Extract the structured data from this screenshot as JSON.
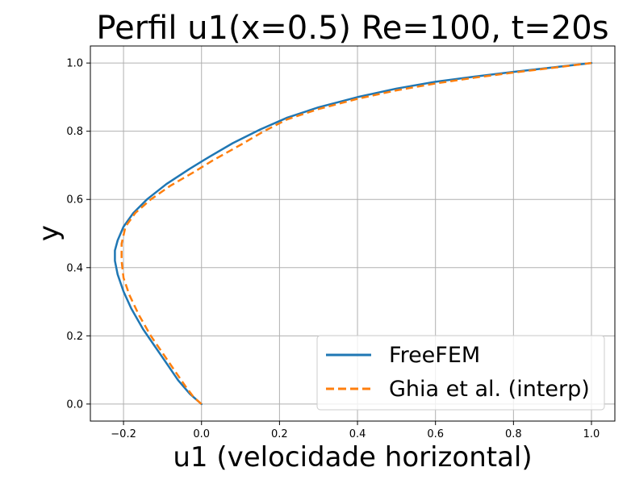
{
  "chart_data": {
    "type": "line",
    "title": "Perfil u1(x=0.5) Re=100, t=20s",
    "xlabel": "u1 (velocidade horizontal)",
    "ylabel": "y",
    "xlim": [
      -0.285,
      1.06
    ],
    "ylim": [
      -0.05,
      1.05
    ],
    "xticks": [
      -0.2,
      0.0,
      0.2,
      0.4,
      0.6,
      0.8,
      1.0
    ],
    "xtick_labels": [
      "−0.2",
      "0.0",
      "0.2",
      "0.4",
      "0.6",
      "0.8",
      "1.0"
    ],
    "yticks": [
      0.0,
      0.2,
      0.4,
      0.6,
      0.8,
      1.0
    ],
    "ytick_labels": [
      "0.0",
      "0.2",
      "0.4",
      "0.6",
      "0.8",
      "1.0"
    ],
    "grid": true,
    "legend_position": "lower-right",
    "series": [
      {
        "name": "FreeFEM",
        "color": "#1f77b4",
        "style": "solid",
        "points": [
          [
            0.0,
            0.0
          ],
          [
            -0.03,
            0.03
          ],
          [
            -0.06,
            0.07
          ],
          [
            -0.09,
            0.12
          ],
          [
            -0.12,
            0.17
          ],
          [
            -0.15,
            0.22
          ],
          [
            -0.18,
            0.28
          ],
          [
            -0.2,
            0.33
          ],
          [
            -0.215,
            0.38
          ],
          [
            -0.222,
            0.42
          ],
          [
            -0.222,
            0.45
          ],
          [
            -0.215,
            0.48
          ],
          [
            -0.2,
            0.52
          ],
          [
            -0.175,
            0.56
          ],
          [
            -0.14,
            0.6
          ],
          [
            -0.09,
            0.645
          ],
          [
            -0.03,
            0.69
          ],
          [
            0.02,
            0.725
          ],
          [
            0.08,
            0.765
          ],
          [
            0.15,
            0.805
          ],
          [
            0.22,
            0.84
          ],
          [
            0.3,
            0.87
          ],
          [
            0.4,
            0.9
          ],
          [
            0.5,
            0.925
          ],
          [
            0.6,
            0.945
          ],
          [
            0.7,
            0.96
          ],
          [
            0.8,
            0.974
          ],
          [
            0.9,
            0.987
          ],
          [
            1.0,
            1.0
          ]
        ]
      },
      {
        "name": "Ghia et al. (interp)",
        "color": "#ff7f0e",
        "style": "dashed",
        "points": [
          [
            0.0,
            0.0
          ],
          [
            -0.02,
            0.02
          ],
          [
            -0.04,
            0.05
          ],
          [
            -0.07,
            0.1
          ],
          [
            -0.1,
            0.15
          ],
          [
            -0.13,
            0.2
          ],
          [
            -0.16,
            0.26
          ],
          [
            -0.185,
            0.32
          ],
          [
            -0.2,
            0.37
          ],
          [
            -0.205,
            0.42
          ],
          [
            -0.205,
            0.47
          ],
          [
            -0.195,
            0.52
          ],
          [
            -0.17,
            0.56
          ],
          [
            -0.13,
            0.6
          ],
          [
            -0.08,
            0.64
          ],
          [
            -0.02,
            0.68
          ],
          [
            0.03,
            0.715
          ],
          [
            0.1,
            0.76
          ],
          [
            0.16,
            0.8
          ],
          [
            0.22,
            0.835
          ],
          [
            0.3,
            0.865
          ],
          [
            0.4,
            0.895
          ],
          [
            0.5,
            0.92
          ],
          [
            0.6,
            0.94
          ],
          [
            0.7,
            0.957
          ],
          [
            0.8,
            0.972
          ],
          [
            0.9,
            0.986
          ],
          [
            1.0,
            1.0
          ]
        ]
      }
    ]
  }
}
